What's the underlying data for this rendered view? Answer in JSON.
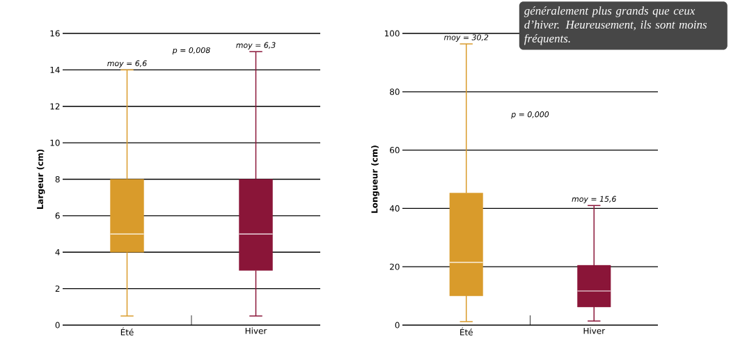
{
  "chart_data": [
    {
      "type": "box",
      "ylabel": "Largeur (cm)",
      "categories": [
        "Été",
        "Hiver"
      ],
      "colors": [
        "#d99b2b",
        "#8a1538"
      ],
      "boxes": [
        {
          "low": 0.5,
          "q1": 4,
          "median": 5,
          "q3": 8,
          "high": 14
        },
        {
          "low": 0.5,
          "q1": 3,
          "median": 5,
          "q3": 8,
          "high": 15
        }
      ],
      "ylim": [
        0,
        16
      ],
      "yticks": [
        0,
        2,
        4,
        6,
        8,
        10,
        12,
        14,
        16
      ],
      "grid": "y",
      "annotations": [
        {
          "text": "moy = 6,6",
          "x": "Été",
          "y": 14
        },
        {
          "text": "moy = 6,3",
          "x": "Hiver",
          "y": 15
        },
        "p = 0,008"
      ]
    },
    {
      "type": "box",
      "ylabel": "Longueur (cm)",
      "categories": [
        "Été",
        "Hiver"
      ],
      "colors": [
        "#d99b2b",
        "#8a1538"
      ],
      "boxes": [
        {
          "low": 1.2,
          "q1": 10,
          "median": 21.5,
          "q3": 45.3,
          "high": 96.4
        },
        {
          "low": 1.4,
          "q1": 6.2,
          "median": 11.7,
          "q3": 20.5,
          "high": 41
        }
      ],
      "ylim": [
        0,
        100
      ],
      "yticks": [
        0,
        20,
        40,
        60,
        80,
        100
      ],
      "grid": "y",
      "annotations": [
        {
          "text": "moy = 30,2",
          "x": "Été",
          "y": 96.4
        },
        {
          "text": "moy = 15,6",
          "x": "Hiver",
          "y": 41
        },
        "p = 0,000",
        "généralement plus grands que ceux d’hiver. Heureusement, ils sont moins fréquents."
      ]
    }
  ]
}
